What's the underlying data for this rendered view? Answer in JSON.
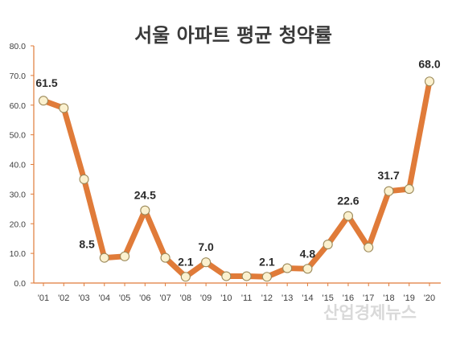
{
  "chart_data": {
    "type": "line",
    "title": "서울 아파트 평균 청약률",
    "categories": [
      "'01",
      "'02",
      "'03",
      "'04",
      "'05",
      "'06",
      "'07",
      "'08",
      "'09",
      "'10",
      "'11",
      "'12",
      "'13",
      "'14",
      "'15",
      "'16",
      "'17",
      "'18",
      "'19",
      "'20"
    ],
    "series": [
      {
        "values": [
          61.5,
          59.0,
          35.0,
          8.5,
          9.0,
          24.5,
          8.5,
          2.1,
          7.0,
          2.3,
          2.3,
          2.1,
          5.0,
          4.8,
          13.0,
          22.6,
          12.0,
          31.0,
          31.7,
          68.0
        ]
      }
    ],
    "data_labels": [
      {
        "index": 0,
        "text": "61.5"
      },
      {
        "index": 3,
        "text": "8.5"
      },
      {
        "index": 5,
        "text": "24.5"
      },
      {
        "index": 7,
        "text": "2.1"
      },
      {
        "index": 8,
        "text": "7.0"
      },
      {
        "index": 11,
        "text": "2.1"
      },
      {
        "index": 13,
        "text": "4.8"
      },
      {
        "index": 15,
        "text": "22.6"
      },
      {
        "index": 18,
        "text": "31.7"
      },
      {
        "index": 19,
        "text": "68.0"
      }
    ],
    "yticks": [
      "0.0",
      "10.0",
      "20.0",
      "30.0",
      "40.0",
      "50.0",
      "60.0",
      "70.0",
      "80.0"
    ],
    "ylim": [
      0,
      80
    ],
    "grid": false,
    "line_color": "#e07b39",
    "marker_fill": "#fbf1cf",
    "marker_stroke": "#9c8a5a"
  },
  "watermark": "산업경제뉴스"
}
